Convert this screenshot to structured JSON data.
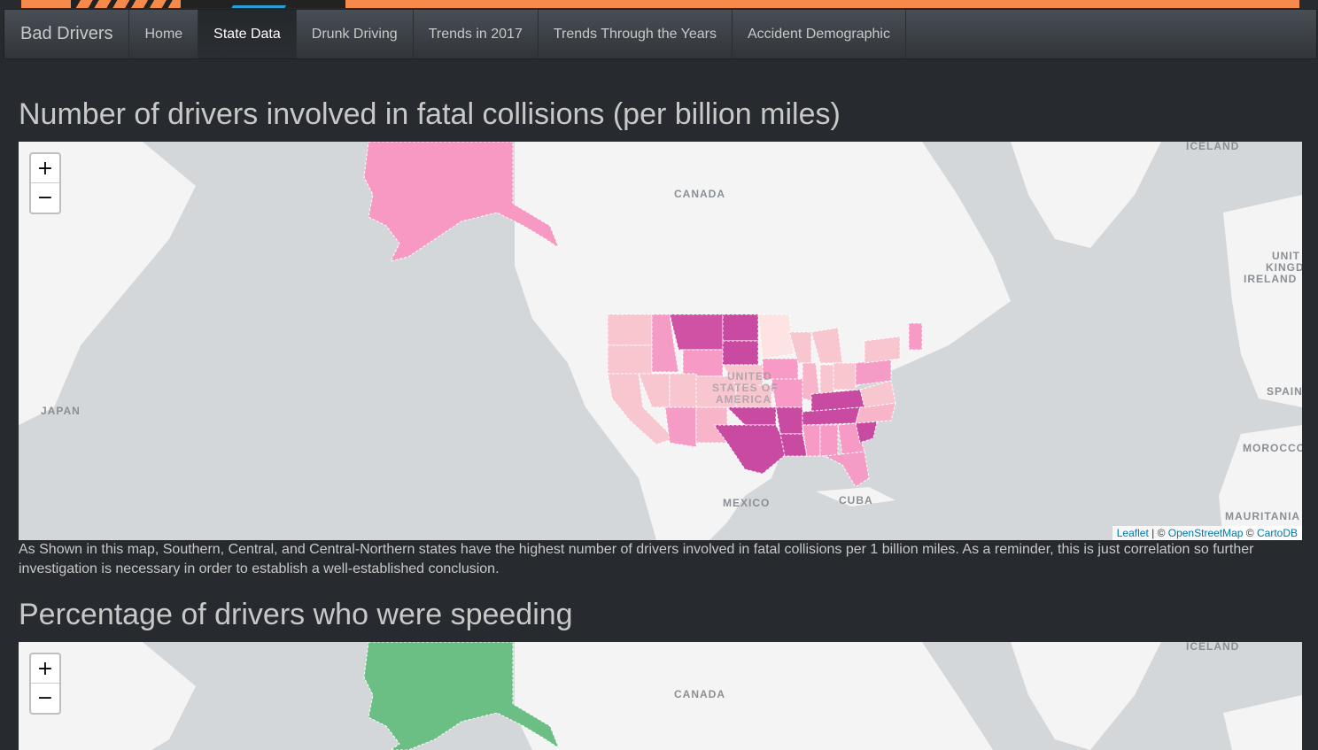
{
  "nav": {
    "brand": "Bad Drivers",
    "items": [
      {
        "label": "Home"
      },
      {
        "label": "State Data"
      },
      {
        "label": "Drunk Driving"
      },
      {
        "label": "Trends in 2017"
      },
      {
        "label": "Trends Through the Years"
      },
      {
        "label": "Accident Demographic"
      }
    ],
    "active": "State Data"
  },
  "section1": {
    "title": "Number of drivers involved in fatal collisions (per billion miles)",
    "choropleth_color": "#c94ba1",
    "description": "As Shown in this map, Southern, Central, and Central-Northern states have the highest number of drivers involved in fatal collisions per 1 billion miles. As a reminder, this is just correlation so further investigation is necessary in order to establish a well-established conclusion."
  },
  "section2": {
    "title": "Percentage of drivers who were speeding",
    "choropleth_color": "#6bbf85"
  },
  "map": {
    "zoom_in": "+",
    "zoom_out": "−",
    "labels": {
      "canada": "CANADA",
      "iceland": "ICELAND",
      "japan": "JAPAN",
      "united_kingdom_1": "UNIT",
      "united_kingdom_2": "KINGD",
      "ireland": "IRELAND",
      "spain": "SPAIN",
      "morocco": "MOROCCO",
      "mauritania": "MAURITANIA",
      "mexico": "MEXICO",
      "cuba": "CUBA",
      "usa_1": "UNITED",
      "usa_2": "STATES OF",
      "usa_3": "AMERICA"
    },
    "attribution": {
      "leaflet": "Leaflet",
      "sep1": " | © ",
      "osm": "OpenStreetMap",
      "sep2": " © ",
      "carto": "CartoDB"
    }
  }
}
